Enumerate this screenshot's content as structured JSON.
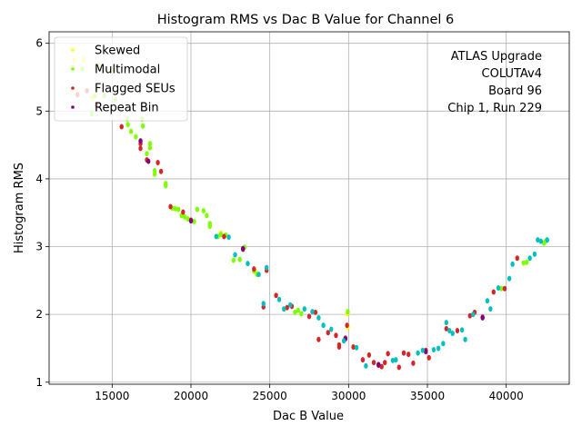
{
  "chart_data": {
    "type": "scatter",
    "title": "Histogram RMS vs Dac B Value for Channel 6",
    "xlabel": "Dac B Value",
    "ylabel": "Histogram RMS",
    "xlim": [
      11000,
      44000
    ],
    "ylim": [
      0.97,
      6.17
    ],
    "xticks": [
      15000,
      20000,
      25000,
      30000,
      35000,
      40000
    ],
    "yticks": [
      1,
      2,
      3,
      4,
      5,
      6
    ],
    "grid": true,
    "legend_position": "top-left",
    "annotation": [
      "ATLAS Upgrade",
      "COLUTAv4",
      "Board 96",
      "Chip 1, Run 229"
    ],
    "series": [
      {
        "name": "Skewed",
        "color": "#ffff00",
        "points": [
          [
            12600,
            5.75
          ],
          [
            13200,
            5.76
          ],
          [
            14100,
            5.68
          ],
          [
            15000,
            5.6
          ],
          [
            12800,
            5.27
          ],
          [
            13700,
            5.2
          ],
          [
            29900,
            2.01
          ],
          [
            29950,
            1.81
          ],
          [
            24100,
            2.63
          ],
          [
            21900,
            3.2
          ]
        ]
      },
      {
        "name": "Multimodal",
        "color": "#7fff00",
        "points": [
          [
            12500,
            5.64
          ],
          [
            13100,
            5.62
          ],
          [
            13900,
            5.22
          ],
          [
            14500,
            5.23
          ],
          [
            15200,
            5.17
          ],
          [
            13700,
            4.96
          ],
          [
            15950,
            4.88
          ],
          [
            16000,
            4.8
          ],
          [
            16200,
            4.7
          ],
          [
            16500,
            4.62
          ],
          [
            16900,
            4.88
          ],
          [
            16950,
            4.78
          ],
          [
            17200,
            4.37
          ],
          [
            17400,
            4.52
          ],
          [
            17400,
            4.46
          ],
          [
            17700,
            4.12
          ],
          [
            17700,
            4.07
          ],
          [
            18400,
            3.93
          ],
          [
            18400,
            3.9
          ],
          [
            18800,
            3.57
          ],
          [
            19000,
            3.56
          ],
          [
            19200,
            3.55
          ],
          [
            19400,
            3.46
          ],
          [
            19600,
            3.44
          ],
          [
            19800,
            3.41
          ],
          [
            20200,
            3.37
          ],
          [
            20400,
            3.55
          ],
          [
            20800,
            3.53
          ],
          [
            21000,
            3.46
          ],
          [
            21200,
            3.34
          ],
          [
            21200,
            3.3
          ],
          [
            21700,
            3.15
          ],
          [
            21900,
            3.18
          ],
          [
            22200,
            3.17
          ],
          [
            22700,
            2.8
          ],
          [
            23100,
            2.81
          ],
          [
            23400,
            2.99
          ],
          [
            24000,
            2.64
          ],
          [
            24200,
            2.59
          ],
          [
            26600,
            2.03
          ],
          [
            26800,
            2.06
          ],
          [
            27000,
            2.01
          ],
          [
            29950,
            2.04
          ],
          [
            41100,
            2.76
          ],
          [
            41300,
            2.77
          ],
          [
            42500,
            3.08
          ],
          [
            42400,
            3.05
          ],
          [
            39700,
            2.38
          ]
        ]
      },
      {
        "name": "Flagged SEUs",
        "color": "#d62728",
        "points": [
          [
            12800,
            5.24
          ],
          [
            13400,
            5.3
          ],
          [
            14000,
            5.1
          ],
          [
            15600,
            4.77
          ],
          [
            16800,
            4.52
          ],
          [
            16800,
            4.45
          ],
          [
            17200,
            4.28
          ],
          [
            17900,
            4.24
          ],
          [
            18100,
            4.11
          ],
          [
            18700,
            3.59
          ],
          [
            19500,
            3.51
          ],
          [
            20000,
            3.39
          ],
          [
            22100,
            3.15
          ],
          [
            23300,
            2.96
          ],
          [
            24000,
            2.67
          ],
          [
            24600,
            2.11
          ],
          [
            24800,
            2.65
          ],
          [
            25400,
            2.28
          ],
          [
            26100,
            2.1
          ],
          [
            26400,
            2.12
          ],
          [
            27500,
            1.97
          ],
          [
            27900,
            2.03
          ],
          [
            28100,
            1.63
          ],
          [
            28700,
            1.73
          ],
          [
            29200,
            1.69
          ],
          [
            29400,
            1.52
          ],
          [
            29400,
            1.55
          ],
          [
            29800,
            1.65
          ],
          [
            29900,
            1.84
          ],
          [
            30300,
            1.52
          ],
          [
            30900,
            1.33
          ],
          [
            31300,
            1.4
          ],
          [
            31600,
            1.29
          ],
          [
            31900,
            1.25
          ],
          [
            32100,
            1.23
          ],
          [
            32300,
            1.29
          ],
          [
            32500,
            1.42
          ],
          [
            33200,
            1.22
          ],
          [
            33500,
            1.43
          ],
          [
            33800,
            1.41
          ],
          [
            34100,
            1.28
          ],
          [
            34900,
            1.47
          ],
          [
            35100,
            1.36
          ],
          [
            36200,
            1.79
          ],
          [
            36900,
            1.76
          ],
          [
            37700,
            1.98
          ],
          [
            38000,
            2.03
          ],
          [
            38500,
            1.96
          ],
          [
            39200,
            2.33
          ],
          [
            39900,
            2.38
          ],
          [
            40700,
            2.83
          ]
        ]
      },
      {
        "name": "Repeat Bin",
        "color": "#800080",
        "points": [
          [
            16800,
            4.56
          ],
          [
            17300,
            4.26
          ],
          [
            20000,
            3.38
          ],
          [
            23300,
            2.97
          ],
          [
            29800,
            1.64
          ],
          [
            34900,
            1.45
          ],
          [
            31900,
            1.26
          ],
          [
            38500,
            1.95
          ]
        ]
      },
      {
        "color": "#00bfbf",
        "points": [
          [
            21600,
            3.15
          ],
          [
            22400,
            3.14
          ],
          [
            22800,
            2.88
          ],
          [
            23600,
            2.75
          ],
          [
            24300,
            2.59
          ],
          [
            24600,
            2.16
          ],
          [
            24800,
            2.69
          ],
          [
            25600,
            2.22
          ],
          [
            25900,
            2.08
          ],
          [
            26300,
            2.14
          ],
          [
            27200,
            2.08
          ],
          [
            27700,
            2.04
          ],
          [
            28100,
            1.95
          ],
          [
            28400,
            1.84
          ],
          [
            28900,
            1.78
          ],
          [
            29700,
            1.61
          ],
          [
            30500,
            1.51
          ],
          [
            31100,
            1.24
          ],
          [
            32800,
            1.32
          ],
          [
            33000,
            1.33
          ],
          [
            34400,
            1.43
          ],
          [
            34700,
            1.47
          ],
          [
            35400,
            1.48
          ],
          [
            35700,
            1.5
          ],
          [
            36000,
            1.57
          ],
          [
            36200,
            1.88
          ],
          [
            36400,
            1.76
          ],
          [
            36600,
            1.72
          ],
          [
            37200,
            1.77
          ],
          [
            37400,
            1.63
          ],
          [
            37900,
            2.0
          ],
          [
            38800,
            2.2
          ],
          [
            39000,
            2.08
          ],
          [
            39500,
            2.39
          ],
          [
            40200,
            2.53
          ],
          [
            40400,
            2.74
          ],
          [
            41500,
            2.83
          ],
          [
            41800,
            2.89
          ],
          [
            42000,
            3.1
          ],
          [
            42200,
            3.08
          ],
          [
            42600,
            3.1
          ]
        ]
      }
    ]
  }
}
